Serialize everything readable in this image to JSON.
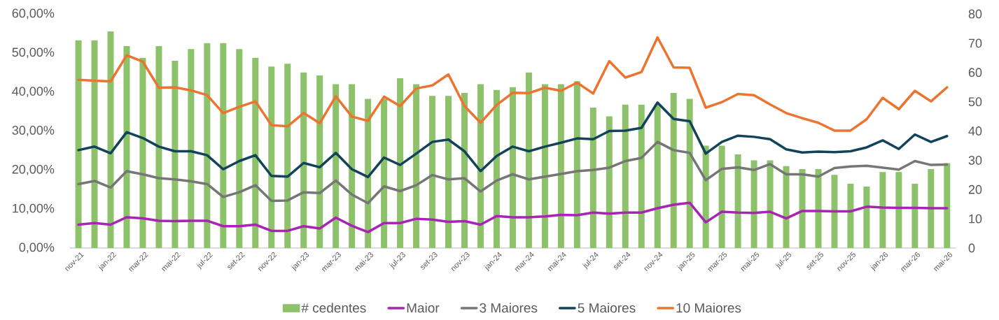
{
  "chart_data": {
    "type": "line",
    "categories": [
      "nov-21",
      null,
      "jan-22",
      null,
      "mar-22",
      null,
      "mai-22",
      null,
      "jul-22",
      null,
      "set-22",
      null,
      "nov-22",
      null,
      "jan-23",
      null,
      "mar-23",
      null,
      "mai-23",
      null,
      "jul-23",
      null,
      "set-23",
      null,
      "nov-23",
      null,
      "jan-24",
      null,
      "mar-24",
      null,
      "mai-24",
      null,
      "jul-24",
      null,
      "set-24",
      null,
      "nov-24",
      null,
      "jan-25",
      null,
      "mar-25",
      null,
      "mai-25",
      null,
      "jul-25",
      null,
      "set-25",
      null,
      "nov-25",
      null,
      "jan-26",
      null,
      "mar-26",
      null,
      "mai-26"
    ],
    "series": [
      {
        "name": "# cedentes",
        "type": "bar",
        "axis": "y2",
        "color": "#8dc26b",
        "values": [
          71,
          71,
          74,
          69,
          65,
          69,
          64,
          68,
          70,
          70,
          68,
          65,
          62,
          63,
          60,
          59,
          56,
          56,
          51,
          51,
          58,
          56,
          52,
          52,
          53,
          56,
          54,
          55,
          60,
          56,
          56,
          57,
          48,
          45,
          49,
          49,
          49,
          53,
          51,
          35,
          35,
          32,
          30,
          30,
          28,
          27,
          27,
          25,
          22,
          21,
          26,
          26,
          22,
          27,
          29
        ]
      },
      {
        "name": "Maior",
        "color": "#a724b4",
        "values": [
          6.0,
          6.4,
          6.0,
          7.9,
          7.6,
          7.0,
          6.9,
          7.0,
          7.0,
          5.6,
          5.6,
          6.0,
          4.4,
          4.4,
          5.6,
          5.0,
          7.8,
          5.7,
          4.1,
          6.4,
          6.4,
          7.5,
          7.3,
          6.7,
          6.9,
          6.0,
          8.2,
          7.9,
          7.9,
          8.1,
          8.5,
          8.4,
          9.1,
          8.8,
          9.1,
          9.1,
          10.2,
          11.1,
          11.6,
          6.6,
          9.3,
          9.1,
          9.0,
          9.3,
          7.6,
          9.5,
          9.5,
          9.4,
          9.4,
          10.6,
          10.4,
          10.3,
          10.3,
          10.2,
          10.2
        ]
      },
      {
        "name": "3 Maiores",
        "color": "#767676",
        "values": [
          16.4,
          17.2,
          15.5,
          19.7,
          18.9,
          17.9,
          17.6,
          17.1,
          16.4,
          13.1,
          14.3,
          16.1,
          12.1,
          12.2,
          14.3,
          14.1,
          17.3,
          13.7,
          11.5,
          15.8,
          14.6,
          16.1,
          18.7,
          17.6,
          17.9,
          14.5,
          17.3,
          18.9,
          17.6,
          18.3,
          19.0,
          19.7,
          20.0,
          20.6,
          22.3,
          23.1,
          27.2,
          25.1,
          24.4,
          17.4,
          20.3,
          20.7,
          20.0,
          21.5,
          18.9,
          18.9,
          18.3,
          20.5,
          20.9,
          21.1,
          20.6,
          20.1,
          22.3,
          21.3,
          21.4
        ]
      },
      {
        "name": "5 Maiores",
        "color": "#12435a",
        "values": [
          25.1,
          26.0,
          24.3,
          29.7,
          28.2,
          26.0,
          24.8,
          24.8,
          23.8,
          20.2,
          22.3,
          23.8,
          18.5,
          18.3,
          21.8,
          20.7,
          24.4,
          20.2,
          18.2,
          23.2,
          21.3,
          24.2,
          27.2,
          27.8,
          24.8,
          19.7,
          23.6,
          26.0,
          24.8,
          26.0,
          27.0,
          28.1,
          27.9,
          30.0,
          30.1,
          30.8,
          37.3,
          33.1,
          32.5,
          24.2,
          27.2,
          28.8,
          28.5,
          27.9,
          25.3,
          24.5,
          24.7,
          24.6,
          24.8,
          25.8,
          27.6,
          25.4,
          29.1,
          27.2,
          28.7
        ]
      },
      {
        "name": "10 Maiores",
        "color": "#ec7431",
        "values": [
          43.1,
          42.9,
          42.7,
          49.4,
          47.8,
          41.1,
          41.2,
          40.4,
          39.2,
          34.6,
          36.2,
          37.6,
          31.5,
          31.2,
          34.6,
          32.0,
          38.9,
          33.7,
          32.6,
          38.8,
          36.4,
          40.9,
          41.7,
          44.5,
          36.4,
          32.1,
          36.7,
          39.8,
          39.7,
          41.1,
          40.3,
          42.4,
          39.6,
          47.9,
          43.7,
          45.1,
          54.0,
          46.3,
          46.2,
          36.0,
          37.4,
          39.5,
          39.2,
          36.8,
          34.6,
          33.3,
          32.1,
          30.1,
          30.1,
          33.0,
          38.5,
          35.6,
          40.3,
          37.6,
          41.2
        ]
      }
    ],
    "ylim": [
      0,
      60
    ],
    "yticks": [
      {
        "value": 0,
        "label": "0,00%"
      },
      {
        "value": 10,
        "label": "10,00%"
      },
      {
        "value": 20,
        "label": "20,00%"
      },
      {
        "value": 30,
        "label": "30,00%"
      },
      {
        "value": 40,
        "label": "40,00%"
      },
      {
        "value": 50,
        "label": "50,00%"
      },
      {
        "value": 60,
        "label": "60,00%"
      }
    ],
    "y2lim": [
      0,
      80
    ],
    "y2ticks": [
      0,
      10,
      20,
      30,
      40,
      50,
      60,
      70,
      80
    ],
    "legend": "bottom"
  }
}
